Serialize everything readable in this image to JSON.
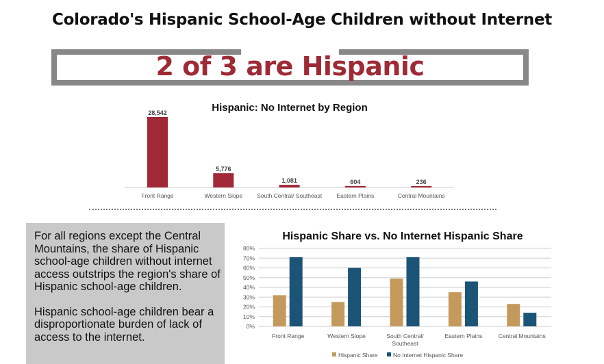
{
  "title": "Colorado's Hispanic School-Age Children without Internet",
  "banner": "2 of 3 are Hispanic",
  "textbox": {
    "p1": "For all regions except the Central Mountains, the share of Hispanic school-age children without internet access outstrips the region's share of Hispanic school-age children.",
    "p2": "Hispanic school-age children bear a disproportionate burden of lack of access to the internet."
  },
  "chart_data": [
    {
      "type": "bar",
      "title": "Hispanic: No Internet by Region",
      "categories": [
        "Front Range",
        "Western Slope",
        "South Central/ Southeast",
        "Eastern Plains",
        "Central Mountains"
      ],
      "values": [
        28542,
        5776,
        1081,
        604,
        236
      ],
      "value_labels": [
        "28,542",
        "5,776",
        "1,081",
        "604",
        "236"
      ],
      "color": "#a02837",
      "grid": false
    },
    {
      "type": "bar",
      "title": "Hispanic Share vs. No Internet Hispanic Share",
      "categories": [
        [
          "Front Range"
        ],
        [
          "Western Slope"
        ],
        [
          "South Central/",
          "Southeast"
        ],
        [
          "Eastern Plains"
        ],
        [
          "Central Mountains"
        ]
      ],
      "yticks": [
        "0%",
        "10%",
        "20%",
        "30%",
        "40%",
        "50%",
        "60%",
        "70%",
        "80%"
      ],
      "ylim": [
        0,
        80
      ],
      "grid": true,
      "legend": "bottom",
      "series": [
        {
          "name": "Hispanic Share",
          "color": "#c49a5c",
          "values": [
            32,
            25,
            49,
            35,
            23
          ]
        },
        {
          "name": "No Internet Hispanic Share",
          "color": "#1c5477",
          "values": [
            71,
            60,
            71,
            46,
            14
          ]
        }
      ]
    }
  ]
}
